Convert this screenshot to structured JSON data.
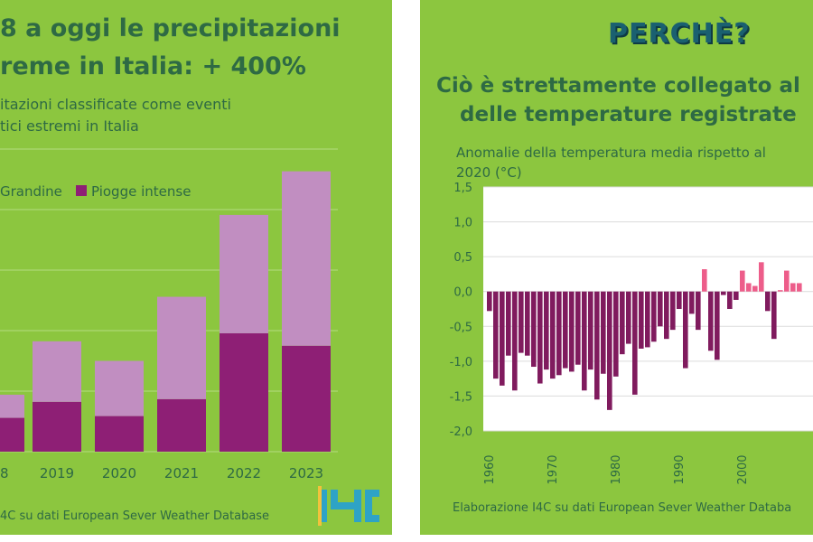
{
  "left": {
    "title_line1": "8 a oggi le precipitazioni",
    "title_line2": "reme in Italia: + 400%",
    "subtitle_line1": "itazioni classificate come eventi",
    "subtitle_line2": "tici estremi in Italia",
    "source": "4C su dati European Sever Weather Database",
    "logo_text": "I4C",
    "colors": {
      "background": "#8cc63f",
      "dark_series": "#8e1f75",
      "light_series": "#c18ec1",
      "title": "#2e6a44"
    }
  },
  "right": {
    "badge": "PERCHÈ?",
    "title_line1": "Ciò è strettamente collegato al",
    "title_line2": "delle temperature registrate",
    "subtitle_line1": "Anomalie della temperatura media rispetto al",
    "subtitle_line2": "2020 (°C)",
    "source": "Elaborazione I4C su dati European Sever Weather Databa",
    "colors": {
      "negative": "#801b5e",
      "positive": "#ed5d8a",
      "plot_bg": "#ffffff"
    }
  },
  "chart_data": [
    {
      "type": "bar",
      "stacked": true,
      "categories": [
        "18",
        "2019",
        "2020",
        "2021",
        "2022",
        "2023"
      ],
      "series": [
        {
          "name": "Piogge intense",
          "color": "#8e1f75",
          "values": [
            38,
            56,
            40,
            59,
            133,
            119
          ]
        },
        {
          "name": "Grandine",
          "color": "#c18ec1",
          "values": [
            26,
            68,
            62,
            115,
            133,
            196
          ]
        }
      ],
      "ylim": [
        0,
        340
      ],
      "grid": true,
      "legend": [
        "Grandine",
        "Piogge intense"
      ],
      "legend_placement": "top-left"
    },
    {
      "type": "bar",
      "x": [
        1960,
        1961,
        1962,
        1963,
        1964,
        1965,
        1966,
        1967,
        1968,
        1969,
        1970,
        1971,
        1972,
        1973,
        1974,
        1975,
        1976,
        1977,
        1978,
        1979,
        1980,
        1981,
        1982,
        1983,
        1984,
        1985,
        1986,
        1987,
        1988,
        1989,
        1990,
        1991,
        1992,
        1993,
        1994,
        1995,
        1996,
        1997,
        1998,
        1999,
        2000,
        2001,
        2002,
        2003,
        2004,
        2005,
        2006,
        2007,
        2008,
        2009
      ],
      "values": [
        -0.28,
        -1.25,
        -1.35,
        -0.92,
        -1.42,
        -0.88,
        -0.92,
        -1.08,
        -1.32,
        -1.12,
        -1.25,
        -1.2,
        -1.1,
        -1.15,
        -1.05,
        -1.42,
        -1.12,
        -1.55,
        -1.18,
        -1.7,
        -1.22,
        -0.9,
        -0.75,
        -1.48,
        -0.82,
        -0.8,
        -0.72,
        -0.5,
        -0.68,
        -0.55,
        -0.25,
        -1.1,
        -0.32,
        -0.55,
        0.32,
        -0.85,
        -0.98,
        -0.05,
        -0.25,
        -0.12,
        0.3,
        0.12,
        0.08,
        0.42,
        -0.28,
        -0.68,
        0.02,
        0.3,
        0.12,
        0.12
      ],
      "xticks": [
        1960,
        1970,
        1980,
        1990,
        2000
      ],
      "yticks": [
        "1,5",
        "1,0",
        "0,5",
        "0,0",
        "-0,5",
        "-1,0",
        "-1,5",
        "-2,0"
      ],
      "ylim": [
        -2.0,
        1.5
      ],
      "grid": true
    }
  ]
}
